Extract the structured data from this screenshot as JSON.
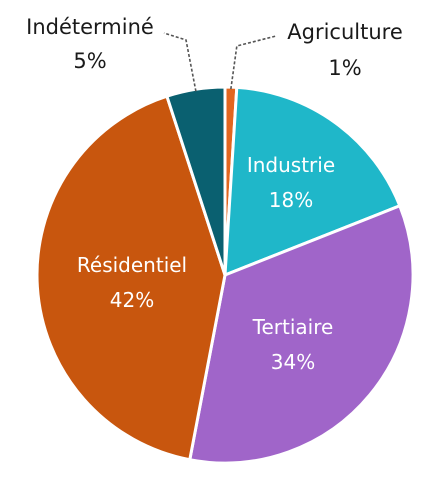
{
  "chart_data": {
    "type": "pie",
    "slices": [
      {
        "label": "Agriculture",
        "value": 1,
        "value_label": "1%",
        "color": "#e2661f"
      },
      {
        "label": "Industrie",
        "value": 18,
        "value_label": "18%",
        "color": "#1fb7c9"
      },
      {
        "label": "Tertiaire",
        "value": 34,
        "value_label": "34%",
        "color": "#a065c9"
      },
      {
        "label": "Résidentiel",
        "value": 42,
        "value_label": "42%",
        "color": "#c8560e"
      },
      {
        "label": "Indéterminé",
        "value": 5,
        "value_label": "5%",
        "color": "#0a6070"
      }
    ],
    "start_angle": "12 o'clock",
    "direction": "clockwise",
    "legend": "none"
  }
}
